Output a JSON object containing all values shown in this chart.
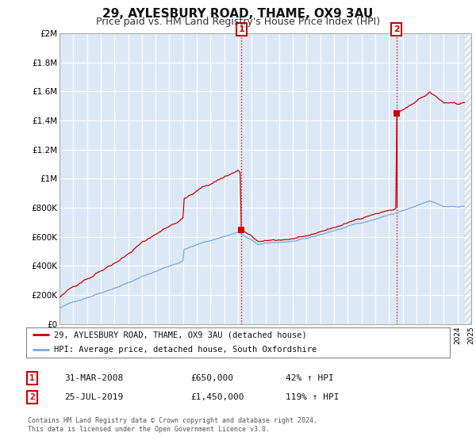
{
  "title": "29, AYLESBURY ROAD, THAME, OX9 3AU",
  "subtitle": "Price paid vs. HM Land Registry's House Price Index (HPI)",
  "title_fontsize": 11,
  "subtitle_fontsize": 9,
  "background_color": "#ffffff",
  "plot_bg_color": "#dce8f5",
  "grid_color": "#c8d8e8",
  "red_line_color": "#cc0000",
  "blue_line_color": "#7aaadd",
  "marker_color": "#cc0000",
  "annotation_box_color": "#cc0000",
  "xlim": [
    1995,
    2025
  ],
  "ylim": [
    0,
    2000000
  ],
  "yticks": [
    0,
    200000,
    400000,
    600000,
    800000,
    1000000,
    1200000,
    1400000,
    1600000,
    1800000,
    2000000
  ],
  "ytick_labels": [
    "£0",
    "£200K",
    "£400K",
    "£600K",
    "£800K",
    "£1M",
    "£1.2M",
    "£1.4M",
    "£1.6M",
    "£1.8M",
    "£2M"
  ],
  "xticks": [
    1995,
    1996,
    1997,
    1998,
    1999,
    2000,
    2001,
    2002,
    2003,
    2004,
    2005,
    2006,
    2007,
    2008,
    2009,
    2010,
    2011,
    2012,
    2013,
    2014,
    2015,
    2016,
    2017,
    2018,
    2019,
    2020,
    2021,
    2022,
    2023,
    2024,
    2025
  ],
  "sale1_x": 2008.25,
  "sale1_y": 650000,
  "sale1_label": "1",
  "sale2_x": 2019.55,
  "sale2_y": 1450000,
  "sale2_label": "2",
  "data_end_x": 2024.5,
  "legend_red": "29, AYLESBURY ROAD, THAME, OX9 3AU (detached house)",
  "legend_blue": "HPI: Average price, detached house, South Oxfordshire",
  "table_rows": [
    [
      "1",
      "31-MAR-2008",
      "£650,000",
      "42% ↑ HPI"
    ],
    [
      "2",
      "25-JUL-2019",
      "£1,450,000",
      "119% ↑ HPI"
    ]
  ],
  "footer": "Contains HM Land Registry data © Crown copyright and database right 2024.\nThis data is licensed under the Open Government Licence v3.0."
}
